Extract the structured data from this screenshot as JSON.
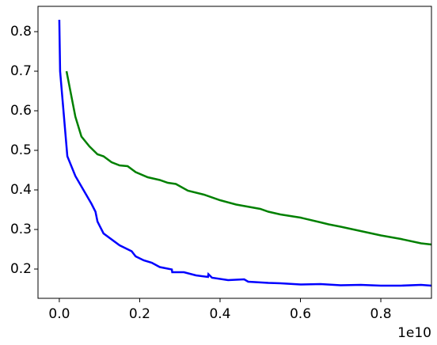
{
  "chart_data": {
    "type": "line",
    "x_offset_label": "1e10",
    "xlim": [
      -0.053,
      0.926
    ],
    "ylim": [
      0.126,
      0.864
    ],
    "xticks": [
      {
        "value": 0,
        "label": "0.0"
      },
      0.2,
      0.4,
      0.6,
      0.8
    ],
    "yticks": [
      0.2,
      0.3,
      0.4,
      0.5,
      0.6,
      0.7,
      0.8
    ],
    "series": [
      {
        "color": "#0000ff",
        "x": [
          0,
          0.002,
          0.02,
          0.04,
          0.06,
          0.08,
          0.09,
          0.095,
          0.11,
          0.15,
          0.18,
          0.19,
          0.21,
          0.23,
          0.25,
          0.28,
          0.281,
          0.31,
          0.34,
          0.37,
          0.371,
          0.38,
          0.42,
          0.46,
          0.47,
          0.52,
          0.55,
          0.6,
          0.65,
          0.7,
          0.75,
          0.8,
          0.85,
          0.9,
          0.926
        ],
        "values": [
          0.83,
          0.7,
          0.485,
          0.435,
          0.4,
          0.365,
          0.345,
          0.32,
          0.29,
          0.26,
          0.245,
          0.232,
          0.222,
          0.216,
          0.205,
          0.199,
          0.192,
          0.192,
          0.184,
          0.18,
          0.187,
          0.178,
          0.172,
          0.174,
          0.168,
          0.165,
          0.164,
          0.161,
          0.162,
          0.159,
          0.16,
          0.158,
          0.158,
          0.16,
          0.158
        ]
      },
      {
        "color": "#008000",
        "x": [
          0.018,
          0.04,
          0.055,
          0.075,
          0.095,
          0.11,
          0.13,
          0.15,
          0.17,
          0.19,
          0.22,
          0.25,
          0.27,
          0.29,
          0.32,
          0.36,
          0.4,
          0.44,
          0.5,
          0.52,
          0.55,
          0.6,
          0.65,
          0.67,
          0.7,
          0.75,
          0.8,
          0.85,
          0.9,
          0.926
        ],
        "values": [
          0.7,
          0.585,
          0.535,
          0.51,
          0.49,
          0.485,
          0.47,
          0.462,
          0.46,
          0.445,
          0.432,
          0.425,
          0.418,
          0.415,
          0.398,
          0.388,
          0.374,
          0.363,
          0.352,
          0.345,
          0.338,
          0.33,
          0.318,
          0.313,
          0.307,
          0.296,
          0.285,
          0.276,
          0.265,
          0.262
        ]
      }
    ]
  }
}
